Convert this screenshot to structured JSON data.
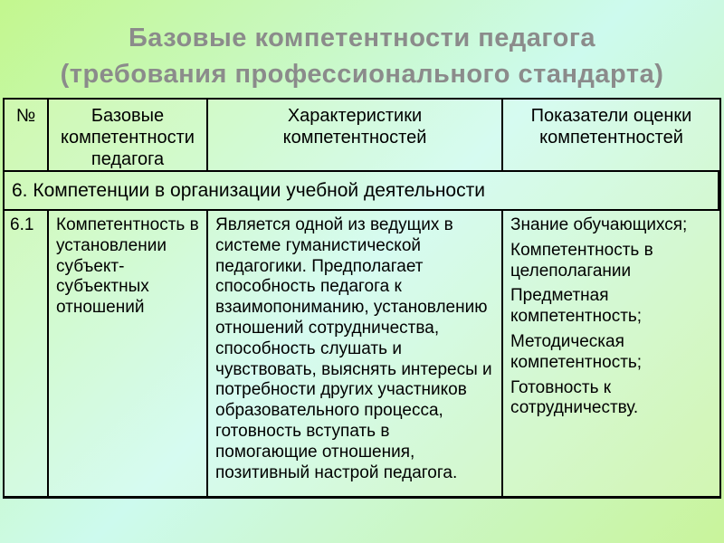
{
  "slide": {
    "title_line1": "Базовые компетентности педагога",
    "title_line2": "(требования профессионального стандарта)"
  },
  "table": {
    "headers": [
      "№",
      "Базовые компетентности педагога",
      "Характеристики компетентностей",
      "Показатели оценки компетентностей"
    ],
    "section_row": "6. Компетенции в организации учебной деятельности",
    "row": {
      "num": "6.1",
      "competence": "Компетентность в установлении субъект-субъектных отношений",
      "characteristics": "Является одной из ведущих в системе гуманистической педагогики. Предполагает способность педагога к взаимопониманию, установлению отношений сотрудничества, способность слушать и чувствовать, выяснять интересы и потребности других участников образовательного процесса, готовность вступать в помогающие отношения, позитивный настрой педагога.",
      "indicators": [
        "Знание обучающихся;",
        "Компетентность в целеполагании",
        "Предметная компетентность;",
        "Методическая компетентность;",
        "Готовность к сотрудничеству."
      ]
    }
  },
  "colors": {
    "title_text": "#8b8b8b",
    "table_border": "#000000",
    "body_text": "#000000",
    "background_green": "#c3f78e",
    "background_cyan": "#cdfaee"
  }
}
